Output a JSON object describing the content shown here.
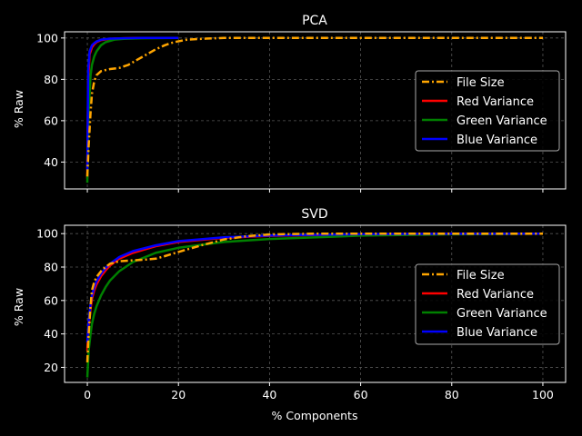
{
  "chart_data": [
    {
      "type": "line",
      "title": "PCA",
      "xlabel": "",
      "ylabel": "% Raw",
      "xlim": [
        -5,
        105
      ],
      "ylim": [
        27,
        103
      ],
      "xticks": [
        0,
        20,
        40,
        60,
        80,
        100
      ],
      "yticks": [
        40,
        60,
        80,
        100
      ],
      "show_x_tick_labels": false,
      "grid": true,
      "legend": "center-right",
      "series": [
        {
          "name": "File Size",
          "color": "#ffa500",
          "style": "dashdot",
          "x": [
            0,
            0.3,
            0.7,
            1,
            1.5,
            2,
            3,
            4,
            5,
            7,
            9,
            11,
            13,
            15,
            17,
            19,
            22,
            26,
            30,
            40,
            60,
            80,
            100
          ],
          "y": [
            33,
            48,
            64,
            73,
            79,
            82,
            84,
            84.5,
            85,
            85.5,
            87,
            89.5,
            92,
            94.5,
            96.5,
            98,
            99.2,
            99.7,
            100,
            100,
            100,
            100,
            100
          ]
        },
        {
          "name": "Red Variance",
          "color": "#ff0000",
          "style": "solid",
          "x": [
            0,
            0.2,
            0.5,
            1,
            1.5,
            2,
            3,
            5,
            8,
            12,
            20
          ],
          "y": [
            32,
            80,
            92,
            95.5,
            97,
            98,
            99,
            99.6,
            99.9,
            100,
            100
          ]
        },
        {
          "name": "Green Variance",
          "color": "#008000",
          "style": "solid",
          "x": [
            0,
            0.3,
            0.7,
            1,
            1.5,
            2,
            3,
            4,
            6,
            8,
            12,
            20
          ],
          "y": [
            30,
            65,
            82,
            87,
            91,
            93.5,
            96.5,
            98,
            99.2,
            99.6,
            99.9,
            100
          ]
        },
        {
          "name": "Blue Variance",
          "color": "#0000ff",
          "style": "solid",
          "x": [
            0,
            0.2,
            0.5,
            1,
            1.5,
            2,
            3,
            5,
            8,
            12,
            20
          ],
          "y": [
            36,
            85,
            93.5,
            96.5,
            97.5,
            98.3,
            99.2,
            99.7,
            99.9,
            100,
            100
          ]
        }
      ]
    },
    {
      "type": "line",
      "title": "SVD",
      "xlabel": "% Components",
      "ylabel": "% Raw",
      "xlim": [
        -5,
        105
      ],
      "ylim": [
        11,
        105
      ],
      "xticks": [
        0,
        20,
        40,
        60,
        80,
        100
      ],
      "yticks": [
        20,
        40,
        60,
        80,
        100
      ],
      "show_x_tick_labels": true,
      "grid": true,
      "legend": "center-right",
      "series": [
        {
          "name": "File Size",
          "color": "#ffa500",
          "style": "dashdot",
          "x": [
            0,
            0.3,
            0.7,
            1,
            1.5,
            2,
            3,
            4,
            5,
            7,
            10,
            13,
            15,
            17,
            20,
            25,
            30,
            35,
            40,
            50,
            60,
            80,
            100
          ],
          "y": [
            23,
            40,
            57,
            66,
            71,
            74,
            77.5,
            80,
            82,
            83.5,
            84,
            84.5,
            85,
            86.5,
            89,
            93,
            96.5,
            98.5,
            99.5,
            100,
            100,
            100,
            100
          ]
        },
        {
          "name": "Red Variance",
          "color": "#ff0000",
          "style": "solid",
          "x": [
            0,
            0.3,
            0.7,
            1,
            1.5,
            2,
            3,
            4,
            5,
            7,
            10,
            15,
            20,
            30,
            40,
            60,
            80,
            100
          ],
          "y": [
            30,
            45,
            55,
            61,
            66,
            69.5,
            74.5,
            78,
            81,
            85,
            88.5,
            92.5,
            95,
            97.5,
            98.7,
            99.6,
            99.9,
            100
          ]
        },
        {
          "name": "Green Variance",
          "color": "#008000",
          "style": "solid",
          "x": [
            0,
            0.3,
            0.7,
            1,
            1.5,
            2,
            3,
            4,
            5,
            7,
            10,
            15,
            20,
            30,
            40,
            60,
            80,
            100
          ],
          "y": [
            14,
            30,
            40,
            46,
            52,
            56.5,
            63,
            68,
            72,
            77.5,
            83,
            88.5,
            91.5,
            95,
            96.8,
            98.8,
            99.6,
            100
          ]
        },
        {
          "name": "Blue Variance",
          "color": "#0000ff",
          "style": "solid",
          "x": [
            0,
            0.3,
            0.7,
            1,
            1.5,
            2,
            3,
            4,
            5,
            7,
            10,
            15,
            20,
            30,
            40,
            60,
            80,
            100
          ],
          "y": [
            35,
            48,
            58,
            63,
            68,
            71.5,
            76,
            79.5,
            82,
            86,
            89.5,
            93,
            95.5,
            97.8,
            98.9,
            99.7,
            99.9,
            100
          ]
        }
      ]
    }
  ]
}
